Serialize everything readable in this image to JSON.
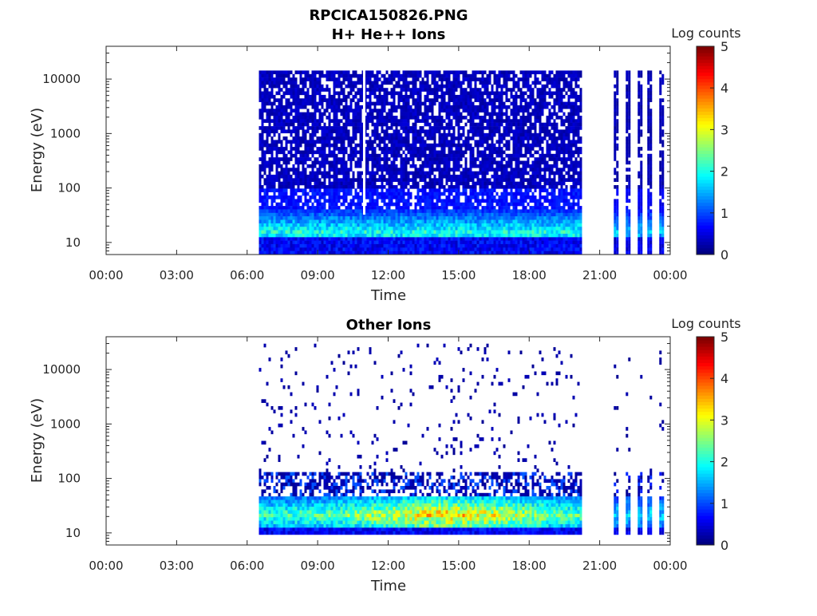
{
  "figure_title": "RPCICA150826.PNG",
  "chart_data": [
    {
      "type": "heatmap",
      "title": "H+ He++ Ions",
      "xlabel": "Time",
      "ylabel": "Energy (eV)",
      "x_ticks": [
        "00:00",
        "03:00",
        "06:00",
        "09:00",
        "12:00",
        "15:00",
        "18:00",
        "21:00",
        "00:00"
      ],
      "xlim_hours": [
        0,
        24
      ],
      "y_ticks": [
        10,
        100,
        1000,
        10000
      ],
      "y_tick_labels": [
        "10",
        "100",
        "1000",
        "10000"
      ],
      "ylim": [
        6,
        40000
      ],
      "y_scale": "log",
      "colorbar": {
        "label": "Log counts",
        "range": [
          0,
          5
        ],
        "ticks": [
          "0",
          "1",
          "2",
          "3",
          "4",
          "5"
        ],
        "colormap": "jet"
      },
      "data_segments": [
        {
          "start_hour": 6.5,
          "end_hour": 20.15,
          "pattern": "continuous"
        },
        {
          "start_hour": 21.6,
          "end_hour": 24.0,
          "pattern": "bursts"
        }
      ],
      "data_gap_hours": [
        [
          0,
          6.5
        ],
        [
          20.15,
          21.6
        ]
      ],
      "features": [
        {
          "description": "low-energy band",
          "energy_range_ev": [
            6,
            40
          ],
          "peak_log_counts": 2.0
        },
        {
          "description": "broad background",
          "energy_range_ev": [
            40,
            15000
          ],
          "typical_log_counts": 0.3
        }
      ]
    },
    {
      "type": "heatmap",
      "title": "Other Ions",
      "xlabel": "Time",
      "ylabel": "Energy (eV)",
      "x_ticks": [
        "00:00",
        "03:00",
        "06:00",
        "09:00",
        "12:00",
        "15:00",
        "18:00",
        "21:00",
        "00:00"
      ],
      "xlim_hours": [
        0,
        24
      ],
      "y_ticks": [
        10,
        100,
        1000,
        10000
      ],
      "y_tick_labels": [
        "10",
        "100",
        "1000",
        "10000"
      ],
      "ylim": [
        6,
        40000
      ],
      "y_scale": "log",
      "colorbar": {
        "label": "Log counts",
        "range": [
          0,
          5
        ],
        "ticks": [
          "0",
          "1",
          "2",
          "3",
          "4",
          "5"
        ],
        "colormap": "jet"
      },
      "data_segments": [
        {
          "start_hour": 6.5,
          "end_hour": 20.15,
          "pattern": "continuous"
        },
        {
          "start_hour": 21.6,
          "end_hour": 24.0,
          "pattern": "bursts"
        }
      ],
      "data_gap_hours": [
        [
          0,
          6.5
        ],
        [
          20.15,
          21.6
        ]
      ],
      "features": [
        {
          "description": "low-energy band",
          "energy_range_ev": [
            10,
            45
          ],
          "peak_log_counts": 3.3
        },
        {
          "description": "scattered background",
          "energy_range_ev": [
            45,
            30000
          ],
          "typical_log_counts": 0.2
        }
      ]
    }
  ]
}
